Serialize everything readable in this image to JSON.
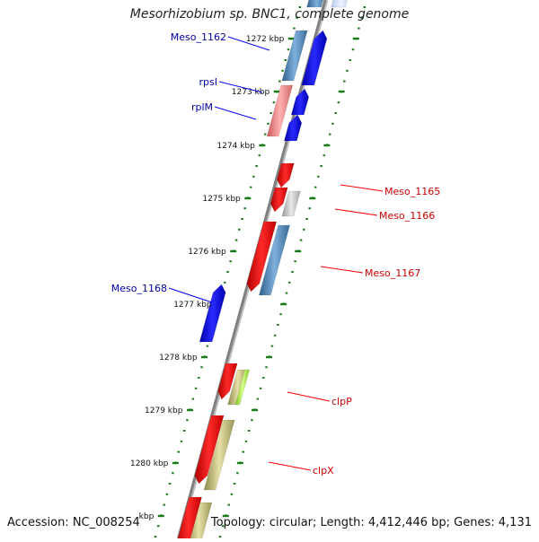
{
  "title": "Mesorhizobium sp. BNC1, complete genome",
  "footer": {
    "accession": "Accession: NC_008254",
    "info": "Topology: circular; Length: 4,412,446 bp; Genes: 4,131"
  },
  "colors": {
    "backbone": "#808080",
    "tick": "#1b7a1b",
    "blue_gene": "#0000ee",
    "red_gene": "#ee0000",
    "steel_gene": "#4682b4",
    "pink_gene": "#f08080",
    "olive_gene": "#bdb76b",
    "lime_gene": "#adff2f",
    "gray_gene": "#c0c0c0",
    "label_blue": "#0000a0",
    "label_red": "#cc0000"
  },
  "ruler": {
    "unit": "kbp",
    "labels": [
      "1272 kbp",
      "1273 kbp",
      "1274 kbp",
      "1275 kbp",
      "1276 kbp",
      "1277 kbp",
      "1278 kbp",
      "1279 kbp",
      "1280 kbp",
      "kbp"
    ]
  },
  "features": [
    {
      "label": "Meso_1162",
      "strand": "plus",
      "label_side": "left",
      "color": "blue"
    },
    {
      "label": "rpsI",
      "strand": "plus",
      "label_side": "left",
      "color": "blue"
    },
    {
      "label": "rplM",
      "strand": "plus",
      "label_side": "left",
      "color": "blue"
    },
    {
      "label": "Meso_1165",
      "strand": "minus",
      "label_side": "right",
      "color": "red"
    },
    {
      "label": "Meso_1166",
      "strand": "minus",
      "label_side": "right",
      "color": "red"
    },
    {
      "label": "Meso_1167",
      "strand": "minus",
      "label_side": "right",
      "color": "red"
    },
    {
      "label": "Meso_1168",
      "strand": "plus",
      "label_side": "left",
      "color": "blue"
    },
    {
      "label": "clpP",
      "strand": "minus",
      "label_side": "right",
      "color": "red"
    },
    {
      "label": "clpX",
      "strand": "minus",
      "label_side": "right",
      "color": "red"
    }
  ]
}
